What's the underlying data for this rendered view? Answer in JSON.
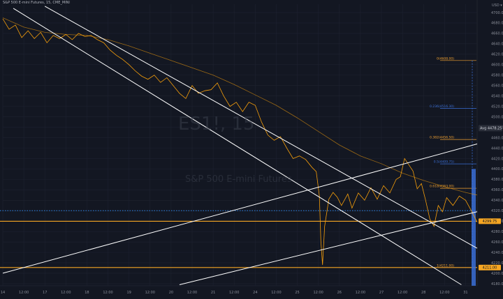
{
  "header": {
    "symbol_line": "S&P 500 E-mini Futures, 15, CME_MINI"
  },
  "watermark": {
    "main": "ES1!, 15",
    "sub": "S&P 500 E-mini Futures"
  },
  "colors": {
    "background": "#131722",
    "grid": "#1e2230",
    "price": "#f59e0b",
    "accent_blue": "#2962ff",
    "trendline": "#ffffff",
    "orange_level": "#f5a623",
    "fib_orange": "#f0a030",
    "fib_blue": "#3b6fd6"
  },
  "chart_data": {
    "type": "line",
    "title": "S&P 500 E-mini Futures, 15, CME_MINI",
    "x_ticks": [
      "14",
      "12:00",
      "17",
      "12:00",
      "18",
      "12:00",
      "19",
      "12:00",
      "20",
      "12:00",
      "21",
      "12:00",
      "24",
      "12:00",
      "25",
      "12:00",
      "26",
      "12:00",
      "27",
      "12:00",
      "28",
      "12:00",
      "31"
    ],
    "y_ticks": [
      4700,
      4680,
      4660,
      4640,
      4620,
      4600,
      4580,
      4560,
      4540,
      4520,
      4500,
      4480,
      4460,
      4440,
      4420,
      4400,
      4380,
      4360,
      4340,
      4320,
      4300,
      4280,
      4260,
      4240,
      4220,
      4200,
      4180
    ],
    "y_axis_top_label": "USD ▾",
    "ylim": [
      4176,
      4716
    ],
    "xlim": [
      0,
      22.55
    ],
    "grid": true,
    "price_series": [
      [
        0,
        4688
      ],
      [
        0.3,
        4668
      ],
      [
        0.6,
        4676
      ],
      [
        0.9,
        4652
      ],
      [
        1.2,
        4665
      ],
      [
        1.5,
        4650
      ],
      [
        1.8,
        4662
      ],
      [
        2.1,
        4642
      ],
      [
        2.4,
        4656
      ],
      [
        2.7,
        4650
      ],
      [
        3,
        4658
      ],
      [
        3.3,
        4648
      ],
      [
        3.6,
        4660
      ],
      [
        3.9,
        4654
      ],
      [
        4.2,
        4656
      ],
      [
        4.5,
        4648
      ],
      [
        4.8,
        4642
      ],
      [
        5.1,
        4628
      ],
      [
        5.4,
        4618
      ],
      [
        5.7,
        4610
      ],
      [
        6,
        4600
      ],
      [
        6.3,
        4588
      ],
      [
        6.6,
        4578
      ],
      [
        6.9,
        4572
      ],
      [
        7.2,
        4580
      ],
      [
        7.5,
        4566
      ],
      [
        7.8,
        4575
      ],
      [
        8.1,
        4560
      ],
      [
        8.4,
        4545
      ],
      [
        8.7,
        4535
      ],
      [
        9,
        4560
      ],
      [
        9.3,
        4545
      ],
      [
        9.6,
        4550
      ],
      [
        9.9,
        4552
      ],
      [
        10.2,
        4565
      ],
      [
        10.5,
        4540
      ],
      [
        10.8,
        4520
      ],
      [
        11.1,
        4528
      ],
      [
        11.4,
        4510
      ],
      [
        11.7,
        4528
      ],
      [
        12,
        4522
      ],
      [
        12.3,
        4490
      ],
      [
        12.6,
        4465
      ],
      [
        12.9,
        4455
      ],
      [
        13.2,
        4462
      ],
      [
        13.5,
        4440
      ],
      [
        13.8,
        4420
      ],
      [
        14.1,
        4425
      ],
      [
        14.4,
        4418
      ],
      [
        14.7,
        4403
      ],
      [
        14.9,
        4395
      ],
      [
        15.05,
        4348
      ],
      [
        15.12,
        4262
      ],
      [
        15.2,
        4216
      ],
      [
        15.3,
        4290
      ],
      [
        15.5,
        4342
      ],
      [
        15.7,
        4355
      ],
      [
        15.9,
        4346
      ],
      [
        16.1,
        4330
      ],
      [
        16.4,
        4352
      ],
      [
        16.6,
        4325
      ],
      [
        16.9,
        4354
      ],
      [
        17.2,
        4340
      ],
      [
        17.5,
        4364
      ],
      [
        17.8,
        4342
      ],
      [
        18.1,
        4368
      ],
      [
        18.4,
        4354
      ],
      [
        18.7,
        4380
      ],
      [
        18.9,
        4385
      ],
      [
        19.1,
        4420
      ],
      [
        19.3,
        4408
      ],
      [
        19.5,
        4396
      ],
      [
        19.7,
        4362
      ],
      [
        19.9,
        4372
      ],
      [
        20.1,
        4340
      ],
      [
        20.3,
        4304
      ],
      [
        20.5,
        4290
      ],
      [
        20.7,
        4330
      ],
      [
        20.9,
        4318
      ],
      [
        21.1,
        4345
      ],
      [
        21.4,
        4330
      ],
      [
        21.7,
        4348
      ],
      [
        22,
        4340
      ],
      [
        22.3,
        4318
      ],
      [
        22.55,
        4298
      ]
    ],
    "moving_average_series": [
      [
        0,
        4690
      ],
      [
        1,
        4672
      ],
      [
        2,
        4662
      ],
      [
        3,
        4658
      ],
      [
        4,
        4656
      ],
      [
        5,
        4648
      ],
      [
        6,
        4636
      ],
      [
        7,
        4622
      ],
      [
        8,
        4608
      ],
      [
        9,
        4594
      ],
      [
        10,
        4580
      ],
      [
        11,
        4562
      ],
      [
        12,
        4542
      ],
      [
        13,
        4522
      ],
      [
        14,
        4498
      ],
      [
        15,
        4472
      ],
      [
        16,
        4446
      ],
      [
        17,
        4425
      ],
      [
        18,
        4410
      ],
      [
        19,
        4392
      ],
      [
        20,
        4378
      ],
      [
        21,
        4366
      ],
      [
        22,
        4355
      ],
      [
        22.55,
        4350
      ]
    ],
    "trendlines": [
      {
        "from": [
          2,
          4712
        ],
        "to": [
          22.55,
          4248
        ]
      },
      {
        "from": [
          0.5,
          4708
        ],
        "to": [
          21.8,
          4178
        ]
      },
      {
        "from": [
          0,
          4200
        ],
        "to": [
          22.55,
          4448
        ]
      },
      {
        "from": [
          8.4,
          4178
        ],
        "to": [
          22.55,
          4318
        ]
      }
    ],
    "horizontal_levels": [
      {
        "value": 4320,
        "style": "dotted"
      },
      {
        "value": 4299.75,
        "style": "solid",
        "label": "4299.75"
      },
      {
        "value": 4211.0,
        "style": "solid",
        "label": "4211.00"
      }
    ],
    "fib_levels": [
      {
        "label": "0(4608.00)",
        "value": 4608.0,
        "color": "orange"
      },
      {
        "label": "0.236(4516.30)",
        "value": 4516.3,
        "color": "blue"
      },
      {
        "label": "0.382(4456.50)",
        "value": 4456.5,
        "color": "orange"
      },
      {
        "label": "0.5(4409.75)",
        "value": 4409.75,
        "color": "blue"
      },
      {
        "label": "0.618(4363.00)",
        "value": 4363.0,
        "color": "orange"
      },
      {
        "label": "1(4211.00)",
        "value": 4211.0,
        "color": "orange"
      }
    ],
    "axis_badges": [
      {
        "label": "Avg",
        "value": 4478.25,
        "text": "4478.25"
      }
    ]
  }
}
